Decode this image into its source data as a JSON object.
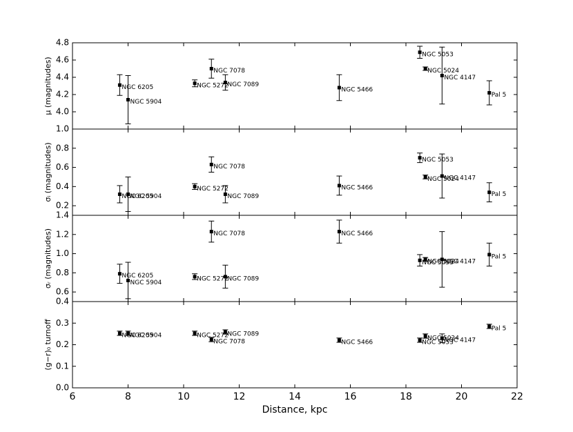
{
  "chart_data": [
    {
      "type": "scatter",
      "ylabel": "μ (magnitudes)",
      "ylim": [
        3.8,
        4.8
      ],
      "yticks": [
        {
          "value": 4,
          "label": "4.0"
        },
        4.2,
        4.4,
        4.6,
        4.8
      ],
      "labels": [
        "NGC 6205",
        "NGC 5904",
        "NGC 5272",
        "NGC 7078",
        "NGC 7089",
        "NGC 5466",
        "NGC 5053",
        "NGC 5024",
        "NGC 4147",
        "Pal 5"
      ],
      "x": [
        7.7,
        8.0,
        10.4,
        11.0,
        11.5,
        15.6,
        18.5,
        18.7,
        19.3,
        21.0
      ],
      "values": [
        4.31,
        4.14,
        4.33,
        4.5,
        4.34,
        4.28,
        4.69,
        4.5,
        4.42,
        4.22
      ],
      "errors": [
        0.12,
        0.28,
        0.04,
        0.11,
        0.09,
        0.15,
        0.07,
        0.02,
        0.33,
        0.14
      ]
    },
    {
      "type": "scatter",
      "ylabel": "σᵢ (magnitudes)",
      "ylim": [
        0.1,
        1.0
      ],
      "yticks": [
        0.2,
        0.4,
        0.6,
        0.8,
        {
          "value": 1,
          "label": "1.0"
        }
      ],
      "labels": [
        "NGC 6205",
        "NGC 5904",
        "NGC 5272",
        "NGC 7078",
        "NGC 7089",
        "NGC 5466",
        "NGC 5053",
        "NGC 5024",
        "NGC 4147",
        "Pal 5"
      ],
      "x": [
        7.7,
        8.0,
        10.4,
        11.0,
        11.5,
        15.6,
        18.5,
        18.7,
        19.3,
        21.0
      ],
      "values": [
        0.32,
        0.32,
        0.4,
        0.63,
        0.32,
        0.41,
        0.7,
        0.5,
        0.51,
        0.34
      ],
      "errors": [
        0.09,
        0.18,
        0.03,
        0.08,
        0.09,
        0.1,
        0.05,
        0.02,
        0.23,
        0.1
      ]
    },
    {
      "type": "scatter",
      "ylabel": "σᵣ (magnitudes)",
      "ylim": [
        0.5,
        1.4
      ],
      "yticks": [
        0.6,
        0.8,
        {
          "value": 1,
          "label": "1.0"
        },
        1.2,
        1.4
      ],
      "labels": [
        "NGC 6205",
        "NGC 5904",
        "NGC 5272",
        "NGC 7078",
        "NGC 7089",
        "NGC 5466",
        "NGC 5053",
        "NGC 5024",
        "NGC 4147",
        "Pal 5"
      ],
      "x": [
        7.7,
        8.0,
        10.4,
        11.0,
        11.5,
        15.6,
        18.5,
        18.7,
        19.3,
        21.0
      ],
      "values": [
        0.79,
        0.72,
        0.76,
        1.23,
        0.76,
        1.23,
        0.93,
        0.94,
        0.94,
        0.99
      ],
      "errors": [
        0.1,
        0.19,
        0.03,
        0.11,
        0.12,
        0.12,
        0.06,
        0.02,
        0.29,
        0.12
      ]
    },
    {
      "type": "scatter",
      "ylabel": "(g−r)₀ turnoff",
      "ylim": [
        0,
        0.4
      ],
      "yticks": [
        {
          "value": 0,
          "label": "0.0"
        },
        0.1,
        0.2,
        0.3,
        0.4
      ],
      "labels": [
        "NGC 6205",
        "NGC 5904",
        "NGC 5272",
        "NGC 7078",
        "NGC 7089",
        "NGC 5466",
        "NGC 5053",
        "NGC 5024",
        "NGC 4147",
        "Pal 5"
      ],
      "x": [
        7.7,
        8.0,
        10.4,
        11.0,
        11.5,
        15.6,
        18.5,
        18.7,
        19.3,
        21.0
      ],
      "values": [
        0.253,
        0.253,
        0.253,
        0.224,
        0.259,
        0.221,
        0.221,
        0.24,
        0.23,
        0.285
      ],
      "errors": [
        0.01,
        0.01,
        0.01,
        0.01,
        0.01,
        0.01,
        0.01,
        0.01,
        0.02,
        0.01
      ],
      "xlabel": "Distance, kpc",
      "xlim": [
        6,
        22
      ],
      "xticks": [
        6,
        8,
        10,
        12,
        14,
        16,
        18,
        20,
        22
      ]
    }
  ]
}
